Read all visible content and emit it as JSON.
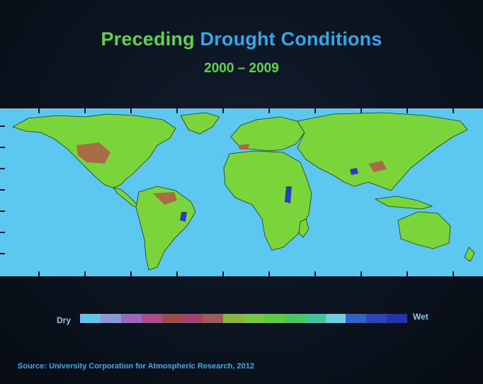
{
  "title": {
    "part1": "Preceding",
    "part2": "Drought Conditions"
  },
  "subtitle": "2000 – 2009",
  "legend": {
    "low_label": "Dry",
    "high_label": "Wet",
    "colors": [
      "#5fc4ef",
      "#8a97d8",
      "#9b66bf",
      "#b04a8e",
      "#a14a4a",
      "#a8406e",
      "#a05a5a",
      "#86b53a",
      "#74c83a",
      "#5ccc3c",
      "#46c85a",
      "#3ec49a",
      "#6acfe0",
      "#2f62cf",
      "#2a44c0",
      "#2432b4"
    ]
  },
  "map": {
    "ocean_color": "#5cc7ef",
    "land_color": "#7ad53b",
    "dry_color": "#b05a48",
    "wet_color": "#2a3fbf"
  },
  "source": "Source: University Corporation for Atmospheric Research, 2012"
}
